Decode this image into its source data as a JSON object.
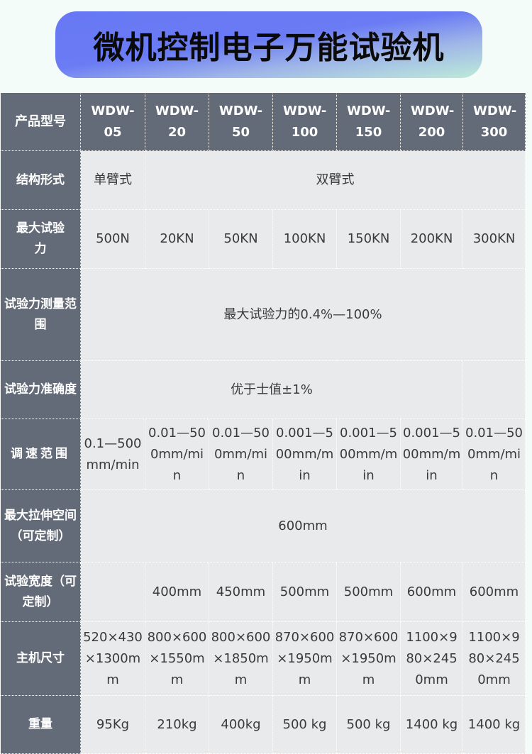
{
  "title": "微机控制电子万能试验机",
  "colors": {
    "header_bg": "#646b78",
    "cell_bg": "#e9eaec",
    "banner_top": "#6a7bf4",
    "banner_bottom": "#bdebd9"
  },
  "header": {
    "label": "产品型号",
    "models": [
      "WDW-05",
      "WDW-20",
      "WDW-50",
      "WDW-100",
      "WDW-150",
      "WDW-200",
      "WDW-300"
    ]
  },
  "rows": {
    "structure": {
      "label": "结构形式",
      "single": "单臂式",
      "double": "双臂式"
    },
    "max_force": {
      "label": "最大试验力",
      "values": [
        "500N",
        "20KN",
        "50KN",
        "100KN",
        "150KN",
        "200KN",
        "300KN"
      ]
    },
    "force_range": {
      "label": "试验力测量范围",
      "value": "最大试验力的0.4%—100%"
    },
    "accuracy": {
      "label": "试验力准确度",
      "value": "优于士值±1%"
    },
    "speed": {
      "label": "调速范围",
      "values": [
        "0.1—500mm/min",
        "0.01—500mm/min",
        "0.01—500mm/min",
        "0.001—500mm/min",
        "0.001—500mm/min",
        "0.001—500mm/min",
        "0.01—500mm/min"
      ]
    },
    "space": {
      "label": "最大拉伸空间（可定制）",
      "value": "600mm"
    },
    "width": {
      "label": "试验宽度（可定制）",
      "values": [
        "",
        "400mm",
        "450mm",
        "500mm",
        "500mm",
        "600mm",
        "600mm"
      ]
    },
    "size": {
      "label": "主机尺寸",
      "values": [
        "520×430×1300mm",
        "800×600×1550mm",
        "800×600×1850mm",
        "870×600×1950mm",
        "870×600×1950mm",
        "1100×980×2450mm",
        "1100×980×2450mm"
      ]
    },
    "weight": {
      "label": "重量",
      "values": [
        "95Kg",
        "210kg",
        "400kg",
        "500 kg",
        "500 kg",
        "1400 kg",
        "1400 kg"
      ]
    }
  }
}
